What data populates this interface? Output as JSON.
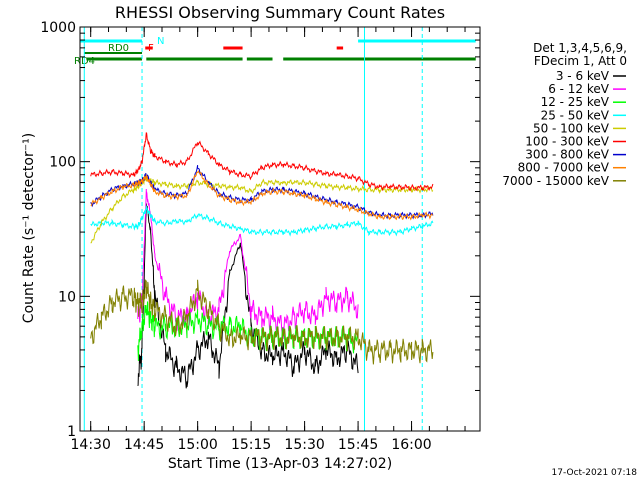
{
  "chart_data": {
    "type": "line",
    "title": "RHESSI Observing Summary Count Rates",
    "xlabel": "Start Time (13-Apr-03 14:27:02)",
    "ylabel": "Count Rate (s⁻¹ detector⁻¹)",
    "y_scale": "log",
    "ylim": [
      1,
      1000
    ],
    "xlim": [
      14.45,
      16.32
    ],
    "x_ticks": [
      {
        "value": 14.5,
        "label": "14:30"
      },
      {
        "value": 14.75,
        "label": "14:45"
      },
      {
        "value": 15.0,
        "label": "15:00"
      },
      {
        "value": 15.25,
        "label": "15:15"
      },
      {
        "value": 15.5,
        "label": "15:30"
      },
      {
        "value": 15.75,
        "label": "15:45"
      },
      {
        "value": 16.0,
        "label": "16:00"
      }
    ],
    "y_ticks": [
      {
        "value": 1,
        "label": "1"
      },
      {
        "value": 10,
        "label": "10"
      },
      {
        "value": 100,
        "label": "100"
      },
      {
        "value": 1000,
        "label": "1000"
      }
    ],
    "legend": {
      "position": "right",
      "header": [
        "Det 1,3,4,5,6,9,",
        "FDecim 1, Att 0"
      ]
    },
    "series": [
      {
        "name": "3 - 6 keV",
        "color": "#000000",
        "x": [
          14.5,
          14.55,
          14.6,
          14.65,
          14.7,
          14.72,
          14.74,
          14.76,
          14.78,
          14.8,
          14.85,
          14.9,
          14.95,
          15.0,
          15.05,
          15.1,
          15.15,
          15.2,
          15.25,
          15.3,
          15.35,
          15.4,
          15.45,
          15.5,
          15.55,
          15.6,
          15.65,
          15.7,
          15.75,
          15.8,
          15.85,
          15.9,
          15.95,
          16.0,
          16.05,
          16.1
        ],
        "y": [
          null,
          null,
          null,
          null,
          null,
          2.5,
          4,
          50,
          30,
          10,
          4,
          3,
          2.5,
          4,
          5,
          3,
          15,
          25,
          6,
          4,
          3.5,
          4,
          3,
          4,
          3,
          4,
          3.5,
          4,
          3,
          null,
          null,
          null,
          null,
          null,
          null,
          null
        ]
      },
      {
        "name": "6 - 12 keV",
        "color": "#ff00ff",
        "x": [
          14.5,
          14.55,
          14.6,
          14.65,
          14.7,
          14.72,
          14.74,
          14.76,
          14.78,
          14.8,
          14.85,
          14.9,
          14.95,
          15.0,
          15.05,
          15.1,
          15.15,
          15.2,
          15.25,
          15.3,
          15.35,
          15.4,
          15.45,
          15.5,
          15.55,
          15.6,
          15.65,
          15.7,
          15.75,
          15.8,
          15.85,
          15.9,
          15.95,
          16.0,
          16.05,
          16.1
        ],
        "y": [
          null,
          null,
          null,
          null,
          null,
          7,
          9,
          60,
          40,
          20,
          10,
          7,
          7,
          10,
          7,
          8,
          22,
          28,
          8,
          7,
          7,
          6,
          7,
          8,
          7,
          10,
          9,
          10,
          8,
          null,
          null,
          null,
          null,
          null,
          null,
          null
        ]
      },
      {
        "name": "12 - 25 keV",
        "color": "#00ff00",
        "x": [
          14.5,
          14.55,
          14.6,
          14.65,
          14.7,
          14.72,
          14.74,
          14.76,
          14.78,
          14.8,
          14.85,
          14.9,
          14.95,
          15.0,
          15.05,
          15.1,
          15.15,
          15.2,
          15.25,
          15.3,
          15.35,
          15.4,
          15.45,
          15.5,
          15.55,
          15.6,
          15.65,
          15.7,
          15.75,
          15.8,
          15.85,
          15.9,
          15.95,
          16.0,
          16.05,
          16.1
        ],
        "y": [
          null,
          null,
          null,
          null,
          null,
          4,
          6,
          8,
          7,
          6,
          6,
          6,
          6,
          7,
          6,
          6,
          6,
          6,
          5,
          5,
          5,
          5,
          5,
          5,
          5,
          5,
          5,
          5,
          4.5,
          null,
          null,
          null,
          null,
          null,
          null,
          null
        ]
      },
      {
        "name": "25 - 50 keV",
        "color": "#00ffff",
        "x": [
          14.5,
          14.55,
          14.6,
          14.65,
          14.7,
          14.72,
          14.74,
          14.76,
          14.78,
          14.8,
          14.85,
          14.9,
          14.95,
          15.0,
          15.05,
          15.1,
          15.15,
          15.2,
          15.25,
          15.3,
          15.35,
          15.4,
          15.45,
          15.5,
          15.55,
          15.6,
          15.65,
          15.7,
          15.75,
          15.8,
          15.85,
          15.9,
          15.95,
          16.0,
          16.05,
          16.1
        ],
        "y": [
          34,
          35,
          35,
          34,
          33,
          33,
          38,
          45,
          40,
          36,
          35,
          36,
          36,
          40,
          38,
          35,
          33,
          32,
          30,
          30,
          30,
          30,
          30,
          31,
          32,
          33,
          33,
          34,
          35,
          30,
          30,
          30,
          30,
          32,
          33,
          35
        ]
      },
      {
        "name": "50 - 100 keV",
        "color": "#cccc00",
        "x": [
          14.5,
          14.55,
          14.6,
          14.65,
          14.7,
          14.72,
          14.74,
          14.76,
          14.78,
          14.8,
          14.85,
          14.9,
          14.95,
          15.0,
          15.05,
          15.1,
          15.15,
          15.2,
          15.25,
          15.3,
          15.35,
          15.4,
          15.45,
          15.5,
          15.55,
          15.6,
          15.65,
          15.7,
          15.75,
          15.8,
          15.85,
          15.9,
          15.95,
          16.0,
          16.05,
          16.1
        ],
        "y": [
          25,
          35,
          45,
          55,
          62,
          65,
          70,
          75,
          72,
          70,
          68,
          66,
          66,
          70,
          68,
          66,
          65,
          64,
          60,
          70,
          70,
          70,
          70,
          70,
          68,
          66,
          65,
          64,
          63,
          62,
          62,
          62,
          62,
          62,
          62,
          63
        ]
      },
      {
        "name": "100 - 300 keV",
        "color": "#ff0000",
        "x": [
          14.5,
          14.55,
          14.6,
          14.65,
          14.7,
          14.72,
          14.74,
          14.76,
          14.78,
          14.8,
          14.85,
          14.9,
          14.95,
          15.0,
          15.05,
          15.1,
          15.15,
          15.2,
          15.25,
          15.3,
          15.35,
          15.4,
          15.45,
          15.5,
          15.55,
          15.6,
          15.65,
          15.7,
          15.75,
          15.8,
          15.85,
          15.9,
          15.95,
          16.0,
          16.05,
          16.1
        ],
        "y": [
          80,
          82,
          84,
          82,
          80,
          85,
          100,
          160,
          120,
          110,
          100,
          95,
          100,
          140,
          115,
          95,
          85,
          80,
          78,
          90,
          95,
          95,
          93,
          90,
          85,
          82,
          80,
          78,
          75,
          68,
          65,
          65,
          65,
          64,
          64,
          65
        ]
      },
      {
        "name": "300 - 800 keV",
        "color": "#0000cc",
        "x": [
          14.5,
          14.55,
          14.6,
          14.65,
          14.7,
          14.72,
          14.74,
          14.76,
          14.78,
          14.8,
          14.85,
          14.9,
          14.95,
          15.0,
          15.05,
          15.1,
          15.15,
          15.2,
          15.25,
          15.3,
          15.35,
          15.4,
          15.45,
          15.5,
          15.55,
          15.6,
          15.65,
          15.7,
          15.75,
          15.8,
          15.85,
          15.9,
          15.95,
          16.0,
          16.05,
          16.1
        ],
        "y": [
          48,
          55,
          62,
          66,
          68,
          70,
          72,
          80,
          70,
          62,
          58,
          56,
          58,
          90,
          70,
          58,
          54,
          52,
          52,
          60,
          62,
          62,
          60,
          58,
          55,
          52,
          50,
          48,
          46,
          42,
          40,
          40,
          40,
          40,
          40,
          41
        ]
      },
      {
        "name": "800 - 7000 keV",
        "color": "#ff8000",
        "x": [
          14.5,
          14.55,
          14.6,
          14.65,
          14.7,
          14.72,
          14.74,
          14.76,
          14.78,
          14.8,
          14.85,
          14.9,
          14.95,
          15.0,
          15.05,
          15.1,
          15.15,
          15.2,
          15.25,
          15.3,
          15.35,
          15.4,
          15.45,
          15.5,
          15.55,
          15.6,
          15.65,
          15.7,
          15.75,
          15.8,
          15.85,
          15.9,
          15.95,
          16.0,
          16.05,
          16.1
        ],
        "y": [
          48,
          54,
          60,
          65,
          67,
          69,
          71,
          78,
          68,
          60,
          56,
          55,
          56,
          85,
          68,
          56,
          52,
          50,
          50,
          58,
          60,
          60,
          58,
          56,
          53,
          50,
          48,
          46,
          44,
          41,
          39,
          39,
          39,
          39,
          40,
          40
        ]
      },
      {
        "name": "7000 - 15000 keV",
        "color": "#808000",
        "x": [
          14.5,
          14.55,
          14.6,
          14.65,
          14.7,
          14.72,
          14.74,
          14.76,
          14.78,
          14.8,
          14.85,
          14.9,
          14.95,
          15.0,
          15.05,
          15.1,
          15.15,
          15.2,
          15.25,
          15.3,
          15.35,
          15.4,
          15.45,
          15.5,
          15.55,
          15.6,
          15.65,
          15.7,
          15.75,
          15.8,
          15.85,
          15.9,
          15.95,
          16.0,
          16.05,
          16.1
        ],
        "y": [
          5,
          7,
          9,
          10,
          10,
          9,
          9,
          12,
          9,
          8,
          7,
          6,
          7,
          11,
          8,
          6,
          5,
          5,
          5,
          5,
          5,
          5,
          5,
          5,
          5,
          5,
          5,
          5,
          5,
          4,
          4,
          4,
          4,
          4,
          4,
          4
        ]
      }
    ],
    "flags": [
      {
        "label": "N",
        "color": "#00ffff",
        "segments": [
          [
            14.45,
            14.74
          ],
          [
            15.75,
            16.3
          ]
        ]
      },
      {
        "label": "F",
        "color": "#ff0000",
        "segments": [
          [
            14.755,
            14.79
          ],
          [
            15.12,
            15.21
          ],
          [
            15.65,
            15.68
          ]
        ]
      },
      {
        "label": "RD0",
        "color": "#008000",
        "segments": [
          [
            14.47,
            14.74
          ]
        ]
      },
      {
        "label": "RD4",
        "color": "#008000",
        "segments": [
          [
            14.48,
            14.74
          ],
          [
            14.76,
            15.21
          ],
          [
            15.23,
            15.35
          ],
          [
            15.4,
            16.3
          ]
        ]
      }
    ],
    "vertical_lines": [
      {
        "x": 14.47,
        "color": "#00ffff",
        "style": "solid"
      },
      {
        "x": 14.74,
        "color": "#00ffff",
        "style": "dashed"
      },
      {
        "x": 15.78,
        "color": "#00ffff",
        "style": "solid"
      },
      {
        "x": 16.05,
        "color": "#00ffff",
        "style": "dashed"
      }
    ]
  },
  "footer": {
    "timestamp": "17-Oct-2021 07:18"
  }
}
